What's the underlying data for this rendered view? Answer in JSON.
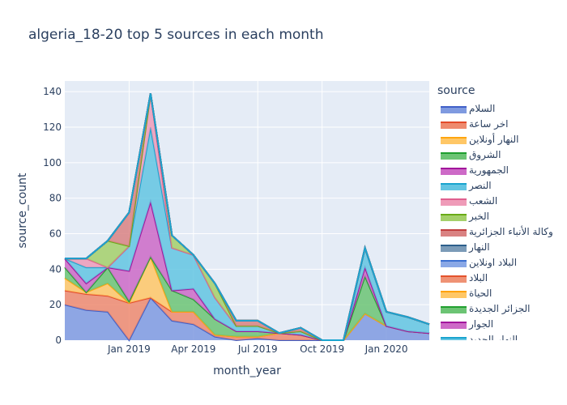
{
  "chart_data": {
    "type": "area",
    "title": "algeria_18-20 top 5 sources in each month",
    "xlabel": "month_year",
    "ylabel": "source_count",
    "ylim": [
      0,
      146
    ],
    "yticks": [
      0,
      20,
      40,
      60,
      80,
      100,
      120,
      140
    ],
    "xticks": [
      "Jan 2019",
      "Apr 2019",
      "Jul 2019",
      "Oct 2019",
      "Jan 2020"
    ],
    "x": [
      "Oct 2018",
      "Nov 2018",
      "Dec 2018",
      "Jan 2019",
      "Feb 2019",
      "Mar 2019",
      "Apr 2019",
      "May 2019",
      "Jun 2019",
      "Jul 2019",
      "Aug 2019",
      "Sep 2019",
      "Oct 2019",
      "Nov 2019",
      "Dec 2019",
      "Jan 2020",
      "Feb 2020",
      "Mar 2020"
    ],
    "legend_title": "source",
    "grid": true,
    "legend_position": "right",
    "series": [
      {
        "name": "السلام",
        "color": "#4060c8",
        "fill": "#7f9ae0",
        "values": [
          20,
          17,
          16,
          0,
          24,
          11,
          9,
          2,
          0,
          1,
          0,
          0,
          0,
          0,
          15,
          8,
          5,
          4
        ]
      },
      {
        "name": "اخر ساعة",
        "color": "#e34a2a",
        "fill": "#ee8a6e",
        "values": [
          8,
          9,
          9,
          21,
          0,
          5,
          7,
          1,
          2,
          1,
          4,
          3,
          0,
          0,
          0,
          0,
          0,
          0
        ]
      },
      {
        "name": "النهار أونلاين",
        "color": "#ffa50f",
        "fill": "#ffc766",
        "values": [
          7,
          1,
          7,
          0,
          23,
          0,
          0,
          0,
          0,
          0,
          0,
          0,
          0,
          0,
          0,
          0,
          0,
          0
        ]
      },
      {
        "name": "الشروق",
        "color": "#1f9e2f",
        "fill": "#6cc474",
        "values": [
          6,
          0,
          9,
          1,
          0,
          12,
          7,
          9,
          3,
          3,
          0,
          0,
          0,
          0,
          21,
          0,
          0,
          0
        ]
      },
      {
        "name": "الجمهورية",
        "color": "#a2159c",
        "fill": "#cd6ac7",
        "values": [
          5,
          5,
          0,
          17,
          31,
          0,
          6,
          0,
          0,
          0,
          0,
          0,
          0,
          0,
          5,
          0,
          0,
          0
        ]
      },
      {
        "name": "النصر",
        "color": "#1aa4cf",
        "fill": "#63c5e2",
        "values": [
          0,
          9,
          0,
          14,
          42,
          24,
          19,
          12,
          3,
          3,
          0,
          2,
          0,
          0,
          11,
          8,
          8,
          5
        ]
      },
      {
        "name": "الشعب",
        "color": "#e05f8e",
        "fill": "#ef9bb8",
        "values": [
          0,
          5,
          0,
          0,
          19,
          0,
          0,
          0,
          0,
          0,
          0,
          0,
          0,
          0,
          0,
          0,
          0,
          0
        ]
      },
      {
        "name": "الخبر",
        "color": "#6aab17",
        "fill": "#a4d06a",
        "values": [
          0,
          0,
          15,
          0,
          0,
          7,
          0,
          8,
          0,
          0,
          0,
          0,
          0,
          0,
          0,
          0,
          0,
          0
        ]
      },
      {
        "name": "وكالة الأنباء الجزائرية",
        "color": "#c23f3f",
        "fill": "#d98282",
        "values": [
          0,
          0,
          0,
          19,
          0,
          0,
          0,
          0,
          3,
          3,
          0,
          2,
          0,
          0,
          0,
          0,
          0,
          0
        ]
      },
      {
        "name": "النهار",
        "color": "#2d5f8c",
        "fill": "#7b9bb8",
        "values": [
          0,
          0,
          0,
          0,
          0,
          0,
          0,
          0,
          0,
          0,
          0,
          0,
          0,
          0,
          0,
          0,
          0,
          0
        ]
      },
      {
        "name": "البلاد اونلاين",
        "color": "#3b6fd0",
        "fill": "#8aa8e6",
        "values": [
          0,
          0,
          0,
          0,
          0,
          0,
          0,
          0,
          0,
          0,
          0,
          0,
          0,
          0,
          0,
          0,
          0,
          0
        ]
      },
      {
        "name": "البلاد",
        "color": "#e4532c",
        "fill": "#ef9275",
        "values": [
          0,
          0,
          0,
          0,
          0,
          0,
          0,
          0,
          0,
          0,
          0,
          0,
          0,
          0,
          0,
          0,
          0,
          0
        ]
      },
      {
        "name": "الحياة",
        "color": "#ffa20a",
        "fill": "#ffc766",
        "values": [
          0,
          0,
          0,
          0,
          0,
          0,
          0,
          0,
          0,
          0,
          0,
          0,
          0,
          0,
          0,
          0,
          0,
          0
        ]
      },
      {
        "name": "الجزائر الجديدة",
        "color": "#22a030",
        "fill": "#6cc474",
        "values": [
          0,
          0,
          0,
          0,
          0,
          0,
          0,
          0,
          0,
          0,
          0,
          0,
          0,
          0,
          0,
          0,
          0,
          0
        ]
      },
      {
        "name": "الجوار",
        "color": "#a2159c",
        "fill": "#cd6ac7",
        "values": [
          0,
          0,
          0,
          0,
          0,
          0,
          0,
          0,
          0,
          0,
          0,
          0,
          0,
          0,
          0,
          0,
          0,
          0
        ]
      },
      {
        "name": "النهار الجديد",
        "color": "#1aa4cf",
        "fill": "#63c5e2",
        "values": [
          0,
          0,
          0,
          0,
          0,
          0,
          0,
          0,
          0,
          0,
          0,
          0,
          0,
          0,
          0,
          0,
          0,
          0
        ]
      }
    ]
  }
}
